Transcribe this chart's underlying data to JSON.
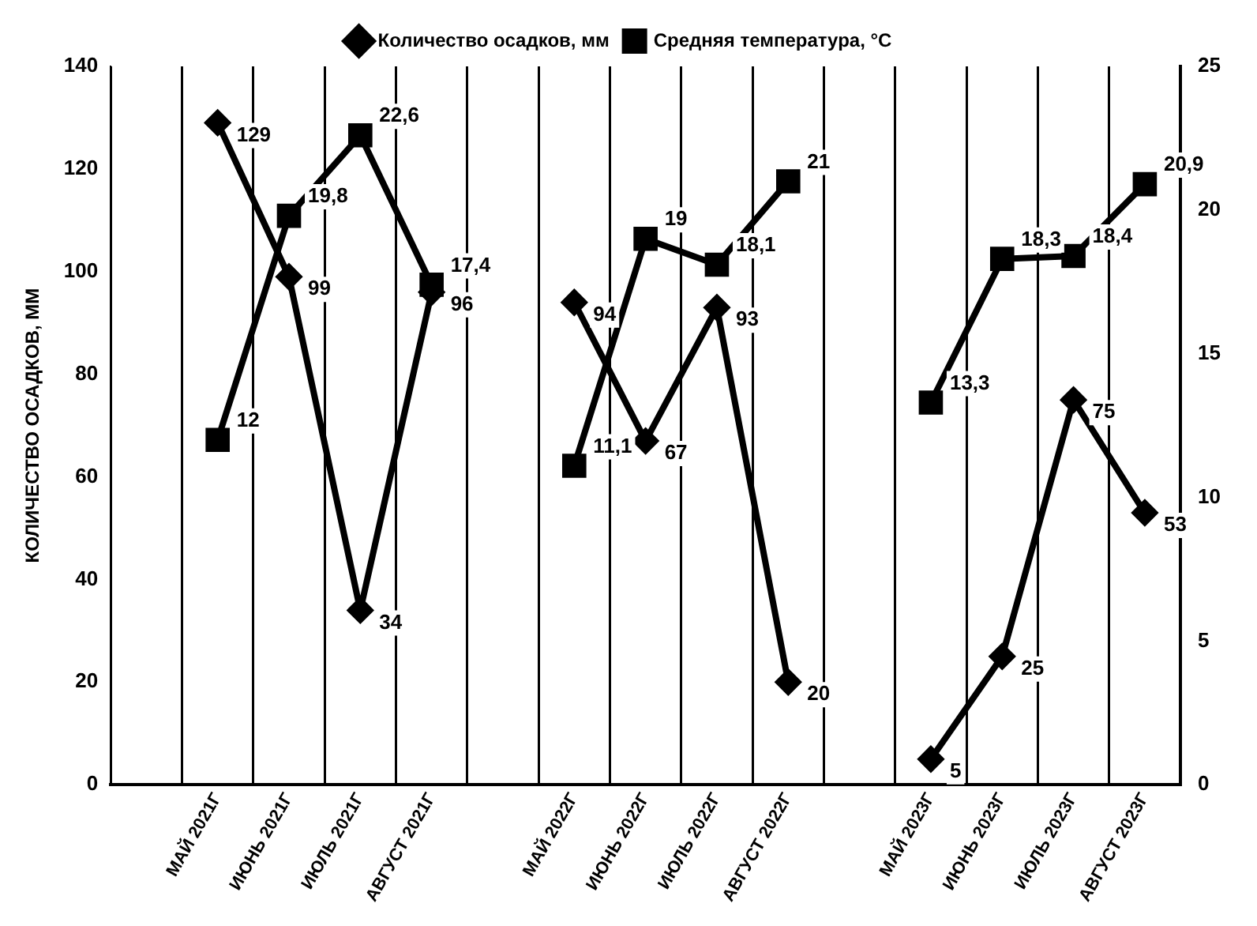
{
  "chart_data": {
    "type": "line",
    "ylabel": "КОЛИЧЕСТВО ОСАДКОВ, ММ",
    "categories": [
      null,
      "МАЙ 2021Г",
      "ИЮНЬ 2021Г",
      "ИЮЛЬ 2021Г",
      "АВГУСТ 2021Г",
      null,
      "МАЙ 2022Г",
      "ИЮНЬ 2022Г",
      "ИЮЛЬ 2022Г",
      "АВГУСТ 2022Г",
      null,
      "МАЙ 2023Г",
      "ИЮНЬ 2023Г",
      "ИЮЛЬ 2023Г",
      "АВГУСТ 2023Г"
    ],
    "series": [
      {
        "name": "Количество осадков, мм",
        "color": "#000000",
        "marker": "diamond",
        "values": [
          null,
          129,
          99,
          34,
          96,
          null,
          94,
          67,
          93,
          20,
          null,
          5,
          25,
          75,
          53
        ],
        "value_labels": [
          null,
          "129",
          "99",
          "34",
          "96",
          null,
          "94",
          "67",
          "93",
          "20",
          null,
          "5",
          "25",
          "75",
          "53"
        ]
      },
      {
        "name": "Средняя температура, °C",
        "color": "#000000",
        "marker": "square",
        "axis": "y2",
        "values": [
          null,
          12,
          19.8,
          22.6,
          17.4,
          null,
          11.1,
          19,
          18.1,
          21,
          null,
          13.3,
          18.3,
          18.4,
          20.9
        ],
        "value_labels": [
          null,
          "12",
          "19,8",
          "22,6",
          "17,4",
          null,
          "11,1",
          "19",
          "18,1",
          "21",
          null,
          "13,3",
          "18,3",
          "18,4",
          "20,9"
        ]
      }
    ],
    "ylim": [
      0,
      140
    ],
    "yticks": [
      0,
      20,
      40,
      60,
      80,
      100,
      120,
      140
    ],
    "y2lim": [
      0,
      25
    ],
    "y2ticks": [
      0,
      5,
      10,
      15,
      20,
      25
    ],
    "grid": "x",
    "legend": "top"
  }
}
